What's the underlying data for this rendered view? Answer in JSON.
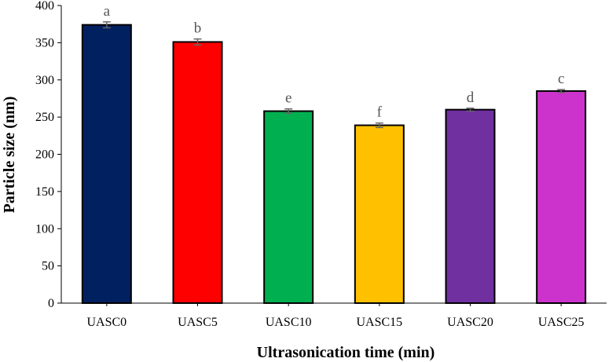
{
  "chart_data": {
    "type": "bar",
    "title": "",
    "xlabel": "Ultrasonication time (min)",
    "ylabel": "Particle size (nm)",
    "ylim": [
      0,
      400
    ],
    "yticks": [
      0,
      50,
      100,
      150,
      200,
      250,
      300,
      350,
      400
    ],
    "categories": [
      "UASC0",
      "UASC5",
      "UASC10",
      "UASC15",
      "UASC20",
      "UASC25"
    ],
    "values": [
      374,
      351,
      258,
      239,
      260,
      285
    ],
    "errors": [
      4,
      4,
      3,
      3,
      2,
      2
    ],
    "significance_letters": [
      "a",
      "b",
      "e",
      "f",
      "d",
      "c"
    ],
    "colors": [
      "#002060",
      "#ff0000",
      "#00b050",
      "#ffc000",
      "#7030a0",
      "#cc33cc"
    ],
    "grid": false,
    "legend": "none"
  }
}
